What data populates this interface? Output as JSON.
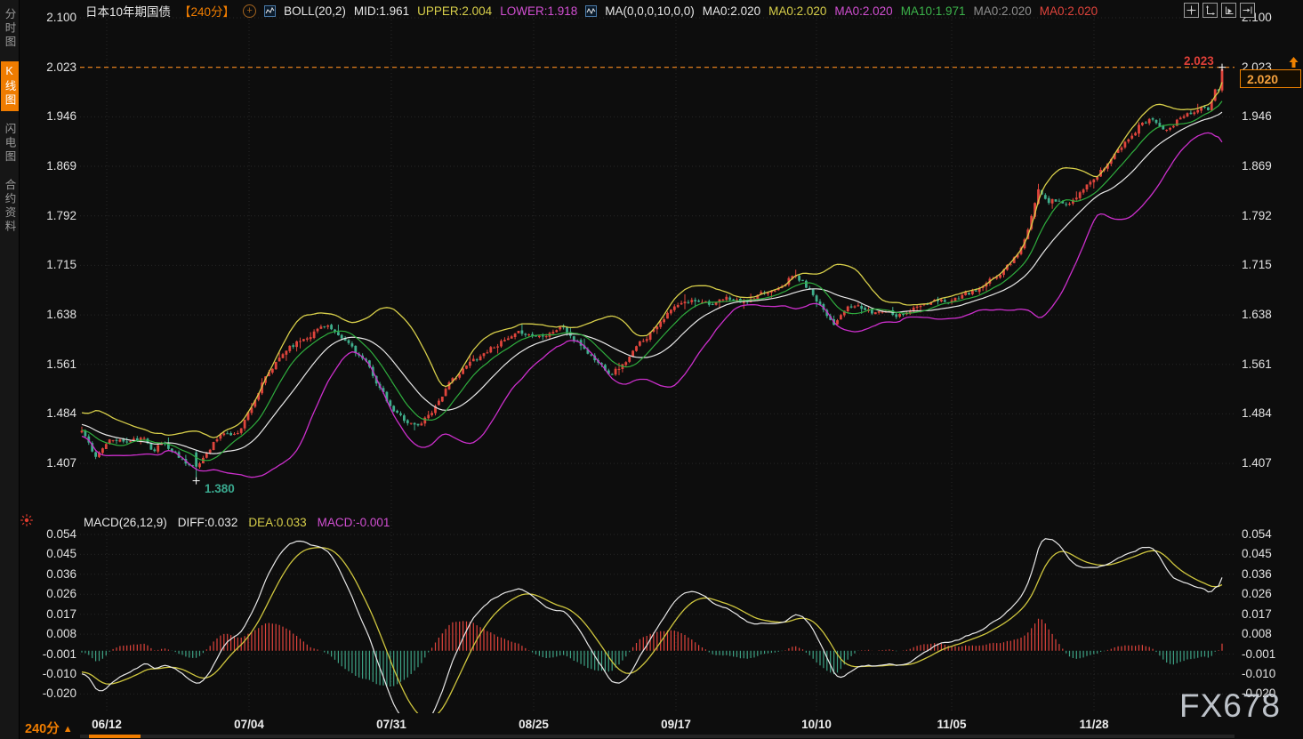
{
  "window": {
    "watermark": "FX678"
  },
  "sidebar": {
    "tabs": [
      {
        "label": "分时图",
        "active": false
      },
      {
        "label": "K线图",
        "active": true
      },
      {
        "label": "闪电图",
        "active": false
      },
      {
        "label": "合约资料",
        "active": false
      }
    ]
  },
  "header": {
    "symbol": "日本10年期国债",
    "period": "【240分】",
    "boll": {
      "name": "BOLL(20,2)",
      "mid_label": "MID:1.961",
      "upper_label": "UPPER:2.004",
      "lower_label": "LOWER:1.918"
    },
    "ma": {
      "name": "MA(0,0,0,10,0,0)",
      "items": [
        {
          "label": "MA0:2.020",
          "color": "#e8e8e8"
        },
        {
          "label": "MA0:2.020",
          "color": "#d8cf4a"
        },
        {
          "label": "MA0:2.020",
          "color": "#d24fd2"
        },
        {
          "label": "MA10:1.971",
          "color": "#3cb44b"
        },
        {
          "label": "MA0:2.020",
          "color": "#8f8f8f"
        },
        {
          "label": "MA0:2.020",
          "color": "#e0443c"
        }
      ]
    }
  },
  "macd_header": {
    "name": "MACD(26,12,9)",
    "diff_label": "DIFF:0.032",
    "dea_label": "DEA:0.033",
    "macd_label": "MACD:-0.001"
  },
  "bottom_bar": {
    "period": "240分",
    "dropdown_arrow": "▲"
  },
  "price_tag": {
    "value": "2.020"
  },
  "annotations": {
    "high": "2.023",
    "low": "1.380"
  },
  "chart_data": {
    "type": "candlestick",
    "title": "日本10年期国债 240分 K线图 (BOLL + MA + MACD)",
    "price_axis": {
      "ticks": [
        "2.100",
        "2.023",
        "1.946",
        "1.869",
        "1.792",
        "1.715",
        "1.638",
        "1.561",
        "1.484",
        "1.407"
      ],
      "max": 2.1,
      "tick_step": 0.077
    },
    "macd_axis": {
      "ticks": [
        "0.054",
        "0.045",
        "0.036",
        "0.026",
        "0.017",
        "0.008",
        "-0.001",
        "-0.010",
        "-0.020"
      ],
      "max": 0.054,
      "min": -0.02
    },
    "x_labels": [
      "06/12",
      "07/04",
      "07/31",
      "08/25",
      "09/17",
      "10/10",
      "11/05",
      "11/28"
    ],
    "legend": [
      "BOLL UPPER",
      "BOLL MID",
      "BOLL LOWER",
      "MA10",
      "DIFF",
      "DEA",
      "MACD histogram"
    ],
    "num_candles": 330,
    "warmup": 25,
    "seed": 11,
    "close_keypoints": [
      [
        0.0,
        1.455
      ],
      [
        0.006,
        1.435
      ],
      [
        0.012,
        1.415
      ],
      [
        0.018,
        1.435
      ],
      [
        0.03,
        1.445
      ],
      [
        0.041,
        1.44
      ],
      [
        0.053,
        1.445
      ],
      [
        0.062,
        1.43
      ],
      [
        0.071,
        1.44
      ],
      [
        0.08,
        1.425
      ],
      [
        0.088,
        1.415
      ],
      [
        0.096,
        1.405
      ],
      [
        0.101,
        1.398
      ],
      [
        0.108,
        1.42
      ],
      [
        0.115,
        1.44
      ],
      [
        0.125,
        1.455
      ],
      [
        0.135,
        1.45
      ],
      [
        0.147,
        1.49
      ],
      [
        0.158,
        1.53
      ],
      [
        0.17,
        1.56
      ],
      [
        0.182,
        1.59
      ],
      [
        0.193,
        1.6
      ],
      [
        0.205,
        1.615
      ],
      [
        0.215,
        1.625
      ],
      [
        0.225,
        1.6
      ],
      [
        0.236,
        1.59
      ],
      [
        0.248,
        1.565
      ],
      [
        0.26,
        1.53
      ],
      [
        0.271,
        1.49
      ],
      [
        0.283,
        1.475
      ],
      [
        0.295,
        1.465
      ],
      [
        0.307,
        1.49
      ],
      [
        0.318,
        1.52
      ],
      [
        0.33,
        1.545
      ],
      [
        0.342,
        1.565
      ],
      [
        0.353,
        1.58
      ],
      [
        0.365,
        1.595
      ],
      [
        0.377,
        1.6
      ],
      [
        0.388,
        1.61
      ],
      [
        0.4,
        1.605
      ],
      [
        0.412,
        1.615
      ],
      [
        0.422,
        1.62
      ],
      [
        0.431,
        1.6
      ],
      [
        0.441,
        1.585
      ],
      [
        0.452,
        1.565
      ],
      [
        0.463,
        1.55
      ],
      [
        0.474,
        1.56
      ],
      [
        0.486,
        1.585
      ],
      [
        0.498,
        1.61
      ],
      [
        0.509,
        1.635
      ],
      [
        0.521,
        1.65
      ],
      [
        0.533,
        1.657
      ],
      [
        0.544,
        1.663
      ],
      [
        0.556,
        1.655
      ],
      [
        0.568,
        1.663
      ],
      [
        0.58,
        1.657
      ],
      [
        0.591,
        1.663
      ],
      [
        0.603,
        1.672
      ],
      [
        0.615,
        1.69
      ],
      [
        0.625,
        1.7
      ],
      [
        0.634,
        1.685
      ],
      [
        0.646,
        1.66
      ],
      [
        0.656,
        1.635
      ],
      [
        0.661,
        1.625
      ],
      [
        0.669,
        1.645
      ],
      [
        0.681,
        1.652
      ],
      [
        0.693,
        1.64
      ],
      [
        0.704,
        1.648
      ],
      [
        0.716,
        1.64
      ],
      [
        0.728,
        1.648
      ],
      [
        0.739,
        1.652
      ],
      [
        0.751,
        1.658
      ],
      [
        0.763,
        1.663
      ],
      [
        0.774,
        1.668
      ],
      [
        0.786,
        1.675
      ],
      [
        0.798,
        1.69
      ],
      [
        0.81,
        1.71
      ],
      [
        0.819,
        1.73
      ],
      [
        0.827,
        1.755
      ],
      [
        0.835,
        1.8
      ],
      [
        0.839,
        1.835
      ],
      [
        0.847,
        1.82
      ],
      [
        0.857,
        1.815
      ],
      [
        0.866,
        1.81
      ],
      [
        0.874,
        1.82
      ],
      [
        0.881,
        1.835
      ],
      [
        0.891,
        1.855
      ],
      [
        0.9,
        1.875
      ],
      [
        0.909,
        1.895
      ],
      [
        0.919,
        1.915
      ],
      [
        0.928,
        1.935
      ],
      [
        0.937,
        1.945
      ],
      [
        0.947,
        1.935
      ],
      [
        0.955,
        1.927
      ],
      [
        0.964,
        1.945
      ],
      [
        0.973,
        1.955
      ],
      [
        0.983,
        1.96
      ],
      [
        0.989,
        1.952
      ],
      [
        0.994,
        1.985
      ],
      [
        1.0,
        2.02
      ]
    ],
    "low_point": {
      "index": 33,
      "price": 1.38
    },
    "high_point": {
      "price": 2.023
    },
    "last": {
      "open": 1.987,
      "close": 2.02,
      "high": 2.023,
      "low": 1.984
    },
    "overlays": {
      "boll_period": 20,
      "boll_k": 2,
      "ma_period": 10
    },
    "macd": {
      "fast": 12,
      "slow": 26,
      "signal": 9,
      "last_diff": 0.032,
      "last_dea": 0.033,
      "last_macd": -0.001,
      "peak_abs": 0.052
    },
    "colors": {
      "up": "#e0453c",
      "down": "#3fae8c",
      "boll_upper": "#d8cf4a",
      "boll_mid": "#e8e8e8",
      "boll_lower": "#cc2fcc",
      "ma10": "#2fae3e",
      "diff": "#e8e8e8",
      "dea": "#cfc63e",
      "hist_pos": "#e0443c",
      "hist_neg": "#3da184",
      "accent": "#f07d00",
      "grid": "#262626",
      "high_line": "#fa8b1e"
    }
  }
}
